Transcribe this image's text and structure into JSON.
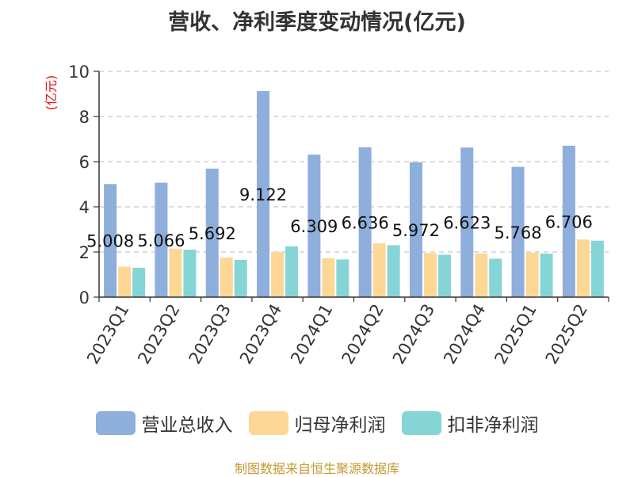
{
  "chart_data": {
    "type": "bar",
    "title": "营收、净利季度变动情况(亿元)",
    "ylabel": "(亿元)",
    "ylim": [
      0,
      10
    ],
    "yticks": [
      0,
      2,
      4,
      6,
      8,
      10
    ],
    "grid": true,
    "legend_position": "bottom",
    "categories": [
      "2023Q1",
      "2023Q2",
      "2023Q3",
      "2023Q4",
      "2024Q1",
      "2024Q2",
      "2024Q3",
      "2024Q4",
      "2025Q1",
      "2025Q2"
    ],
    "series": [
      {
        "name": "营业总收入",
        "color": "#8eaedb",
        "labeled": true,
        "values": [
          5.008,
          5.066,
          5.692,
          9.122,
          6.309,
          6.636,
          5.972,
          6.623,
          5.768,
          6.706
        ]
      },
      {
        "name": "归母净利润",
        "color": "#fdd795",
        "labeled": false,
        "values": [
          1.35,
          2.15,
          1.75,
          2.0,
          1.72,
          2.38,
          1.95,
          1.93,
          1.97,
          2.55
        ]
      },
      {
        "name": "扣非净利润",
        "color": "#86d5d6",
        "labeled": false,
        "values": [
          1.3,
          2.1,
          1.65,
          2.25,
          1.67,
          2.3,
          1.88,
          1.7,
          1.93,
          2.5
        ]
      }
    ]
  },
  "source_note": "制图数据来自恒生聚源数据库"
}
